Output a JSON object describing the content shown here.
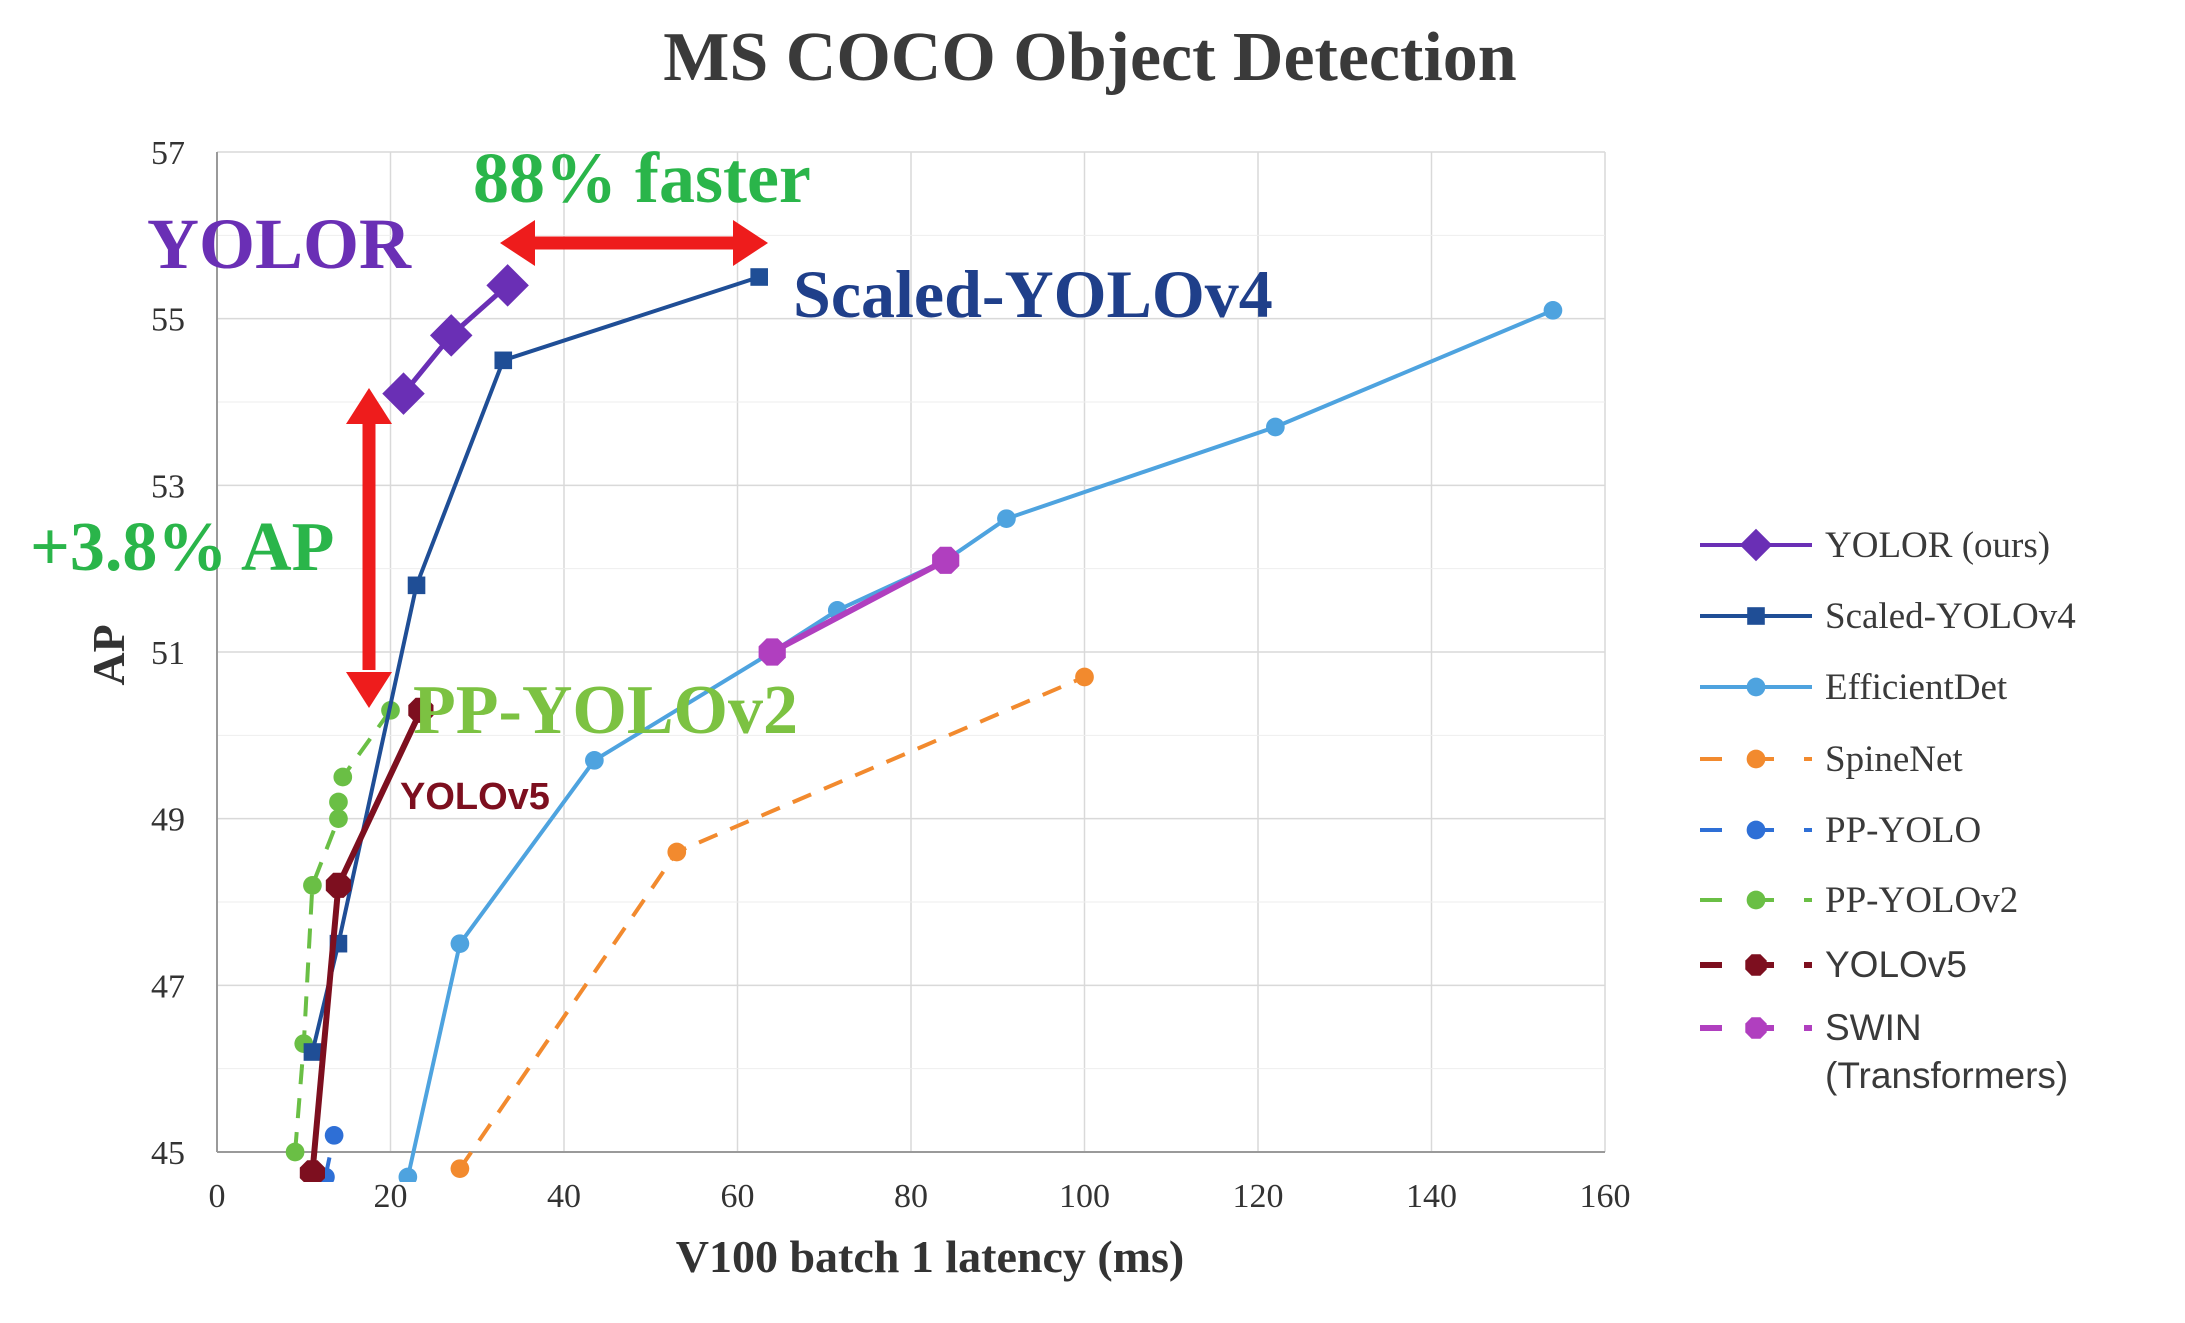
{
  "chart_data": {
    "type": "line",
    "title": "MS COCO Object Detection",
    "xlabel": "V100 batch 1 latency (ms)",
    "ylabel": "AP",
    "xlim": [
      0,
      160
    ],
    "ylim": [
      45,
      57
    ],
    "xticks": [
      "0",
      "20",
      "40",
      "60",
      "80",
      "100",
      "120",
      "140",
      "160"
    ],
    "yticks": [
      "45",
      "47",
      "49",
      "51",
      "53",
      "55",
      "57"
    ],
    "grid": true,
    "legend_position": "right",
    "series": [
      {
        "name": "YOLOR (ours)",
        "color": "#6a2fb5",
        "dash": false,
        "marker": "diamond",
        "points": [
          [
            21.5,
            54.1
          ],
          [
            27,
            54.8
          ],
          [
            33.5,
            55.4
          ]
        ]
      },
      {
        "name": "Scaled-YOLOv4",
        "color": "#1f4e96",
        "dash": false,
        "marker": "square",
        "points": [
          [
            11,
            46.2
          ],
          [
            14,
            47.5
          ],
          [
            23,
            51.8
          ],
          [
            33,
            54.5
          ],
          [
            62.5,
            55.5
          ]
        ]
      },
      {
        "name": "EfficientDet",
        "color": "#4ea3df",
        "dash": false,
        "marker": "circle",
        "points": [
          [
            22,
            44.7
          ],
          [
            28,
            47.5
          ],
          [
            43.5,
            49.7
          ],
          [
            64,
            51.0
          ],
          [
            71.5,
            51.5
          ],
          [
            84,
            52.1
          ],
          [
            91,
            52.6
          ],
          [
            122,
            53.7
          ],
          [
            154,
            55.1
          ]
        ]
      },
      {
        "name": "SpineNet",
        "color": "#f28a2e",
        "dash": true,
        "marker": "circle",
        "points": [
          [
            28,
            44.8
          ],
          [
            53,
            48.6
          ],
          [
            100,
            50.7
          ]
        ]
      },
      {
        "name": "PP-YOLO",
        "color": "#2e6fd6",
        "dash": true,
        "marker": "circle",
        "points": [
          [
            12.5,
            44.7
          ],
          [
            13.5,
            45.2
          ]
        ]
      },
      {
        "name": "PP-YOLOv2",
        "color": "#6abf45",
        "dash": true,
        "marker": "circle",
        "points": [
          [
            9,
            45.0
          ],
          [
            10,
            46.3
          ],
          [
            11,
            48.2
          ],
          [
            14,
            49.0
          ],
          [
            14,
            49.2
          ],
          [
            14.5,
            49.5
          ],
          [
            20,
            50.3
          ]
        ]
      },
      {
        "name": "YOLOv5",
        "color": "#7d0f1f",
        "dash": false,
        "marker": "octagon",
        "points": [
          [
            11,
            44.75
          ],
          [
            14,
            48.2
          ],
          [
            23.5,
            50.3
          ]
        ]
      },
      {
        "name": "SWIN\n(Transformers)",
        "color": "#b03fbf",
        "dash": false,
        "marker": "octagon",
        "points": [
          [
            64,
            51.0
          ],
          [
            84,
            52.1
          ]
        ]
      }
    ],
    "annotations": [
      {
        "text": "88% faster",
        "color": "#2ab54a"
      },
      {
        "text": "YOLOR",
        "color": "#6a2fb5"
      },
      {
        "text": "Scaled-YOLOv4",
        "color": "#1f3f8a"
      },
      {
        "text": "+3.8% AP",
        "color": "#2ab54a"
      },
      {
        "text": "PP-YOLOv2",
        "color": "#7cc242"
      },
      {
        "text": "YOLOv5",
        "color": "#7d0f1f"
      }
    ]
  }
}
